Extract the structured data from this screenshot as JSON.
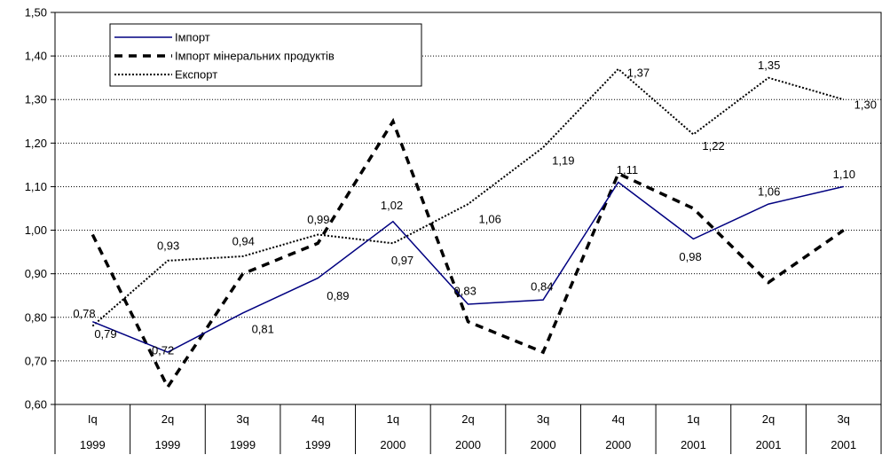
{
  "chart_data": {
    "type": "line",
    "ylim": [
      0.6,
      1.5
    ],
    "y_ticks": [
      "0,60",
      "0,70",
      "0,80",
      "0,90",
      "1,00",
      "1,10",
      "1,20",
      "1,30",
      "1,40",
      "1,50"
    ],
    "y_tick_values": [
      0.6,
      0.7,
      0.8,
      0.9,
      1.0,
      1.1,
      1.2,
      1.3,
      1.4,
      1.5
    ],
    "categories": [
      {
        "q": "Iq",
        "year": "1999"
      },
      {
        "q": "2q",
        "year": "1999"
      },
      {
        "q": "3q",
        "year": "1999"
      },
      {
        "q": "4q",
        "year": "1999"
      },
      {
        "q": "1q",
        "year": "2000"
      },
      {
        "q": "2q",
        "year": "2000"
      },
      {
        "q": "3q",
        "year": "2000"
      },
      {
        "q": "4q",
        "year": "2000"
      },
      {
        "q": "1q",
        "year": "2001"
      },
      {
        "q": "2q",
        "year": "2001"
      },
      {
        "q": "3q",
        "year": "2001"
      }
    ],
    "grid": "horizontal",
    "legend_position": "top-left",
    "series": [
      {
        "name": "Імпорт",
        "style": "solid",
        "color": "#000080",
        "values": [
          0.79,
          0.72,
          0.81,
          0.89,
          1.02,
          0.83,
          0.84,
          1.11,
          0.98,
          1.06,
          1.1
        ],
        "labels": [
          "0,79",
          "0,72",
          "0,81",
          "0,89",
          "1,02",
          "0,83",
          "0,84",
          "1,11",
          "0,98",
          "1,06",
          "1,10"
        ]
      },
      {
        "name": "Імпорт мінеральних продуктів",
        "style": "dashed",
        "color": "#000000",
        "values": [
          0.99,
          0.64,
          0.9,
          0.97,
          1.25,
          0.79,
          0.72,
          1.13,
          1.05,
          0.88,
          1.0
        ],
        "labels": []
      },
      {
        "name": "Експорт",
        "style": "dotted",
        "color": "#000000",
        "values": [
          0.78,
          0.93,
          0.94,
          0.99,
          0.97,
          1.06,
          1.19,
          1.37,
          1.22,
          1.35,
          1.3
        ],
        "labels": [
          "0,78",
          "0,93",
          "0,94",
          "0,99",
          "0,97",
          "1,06",
          "1,19",
          "1,37",
          "1,22",
          "1,35",
          "1,30"
        ]
      }
    ]
  }
}
